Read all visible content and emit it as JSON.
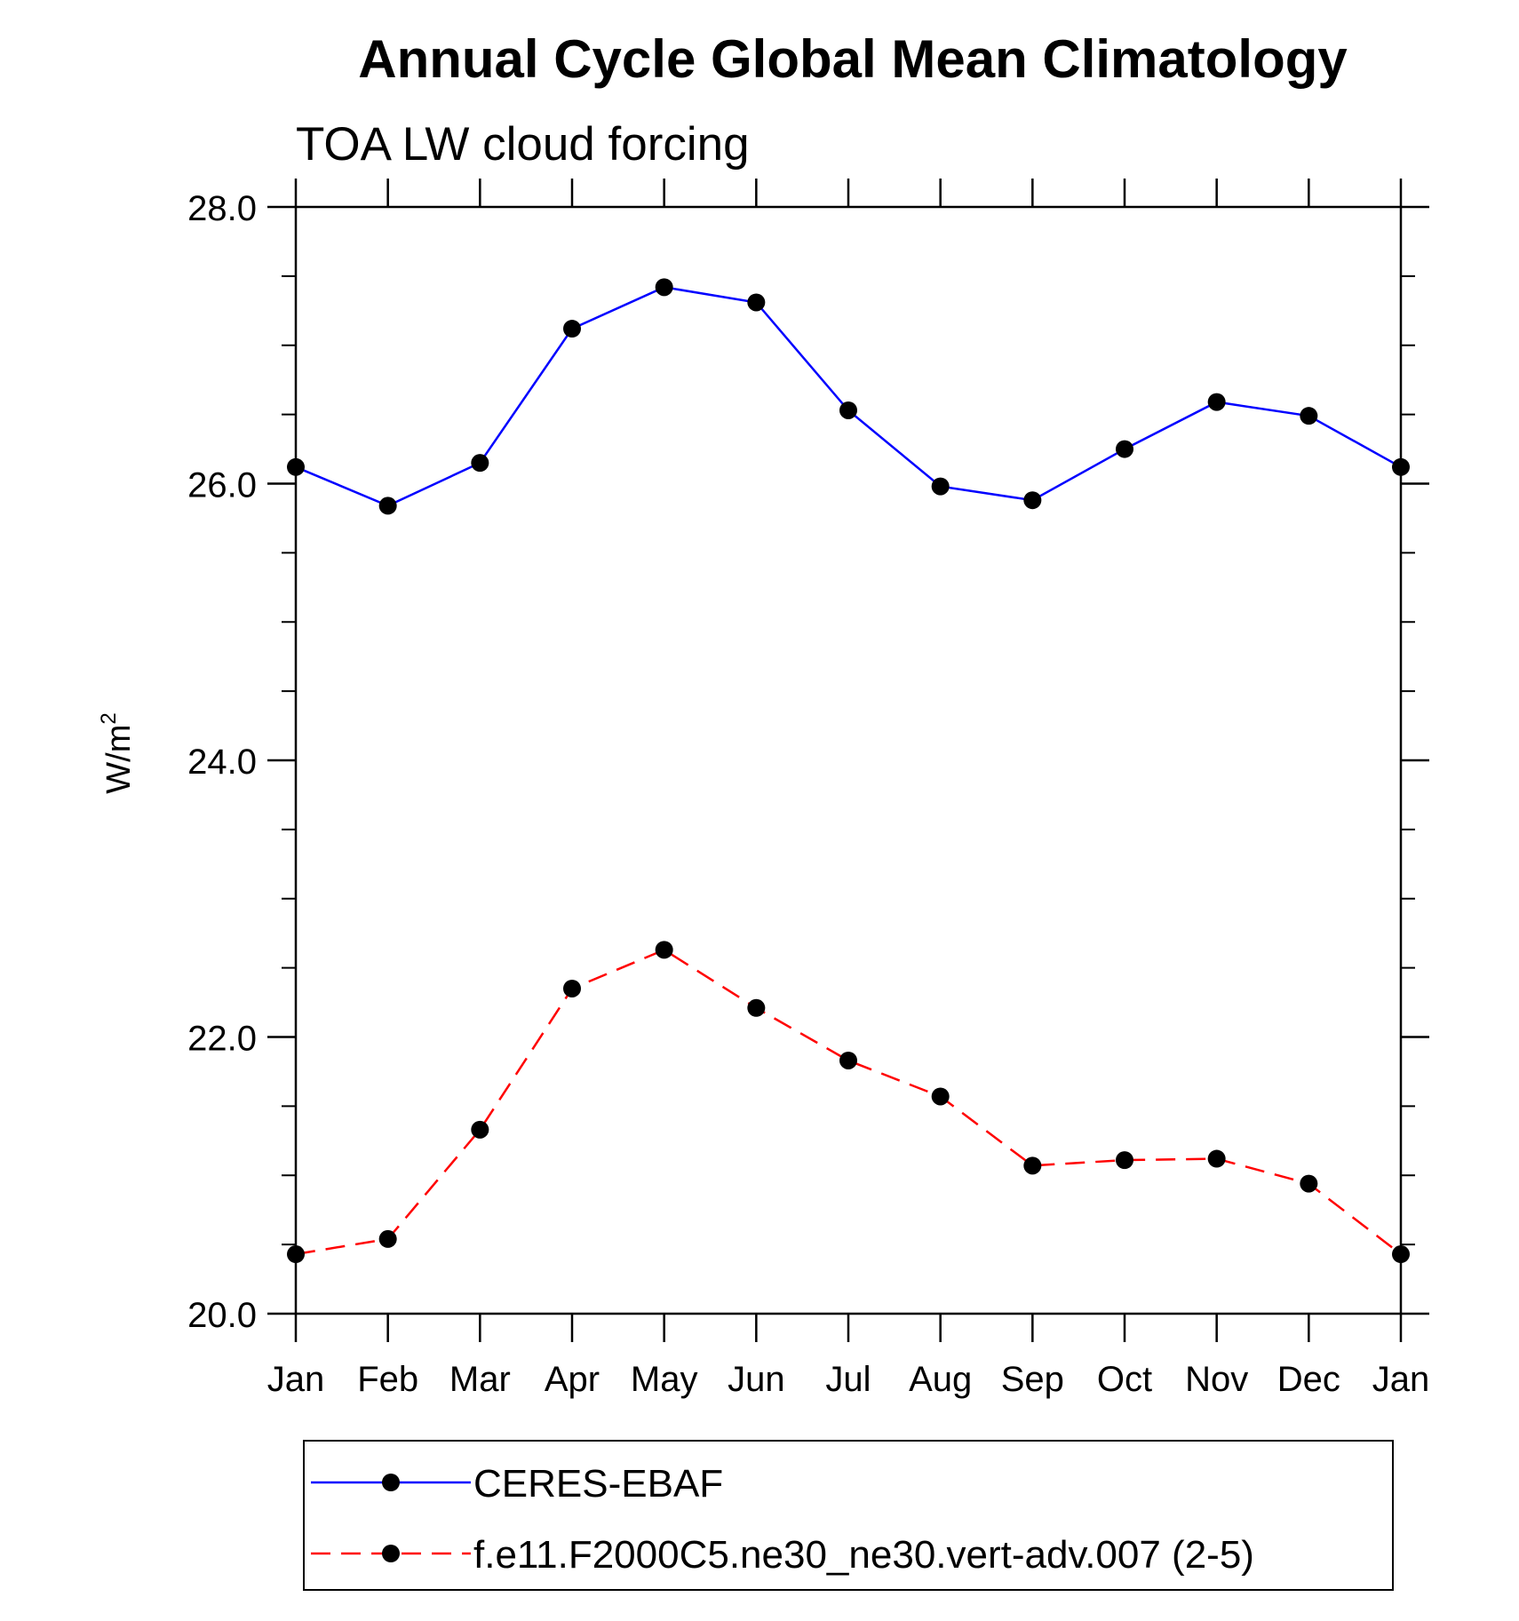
{
  "chart_data": {
    "type": "line",
    "title": "Annual Cycle Global Mean Climatology",
    "subtitle": "TOA LW cloud forcing",
    "ylabel": "W/m",
    "ylabel_superscript": "2",
    "xlabel": "",
    "ylim": [
      20.0,
      28.0
    ],
    "y_major_ticks": [
      20.0,
      22.0,
      24.0,
      26.0,
      28.0
    ],
    "y_tick_labels": [
      "20.0",
      "22.0",
      "24.0",
      "26.0",
      "28.0"
    ],
    "y_minor_step": 0.5,
    "categories": [
      "Jan",
      "Feb",
      "Mar",
      "Apr",
      "May",
      "Jun",
      "Jul",
      "Aug",
      "Sep",
      "Oct",
      "Nov",
      "Dec",
      "Jan"
    ],
    "grid": false,
    "legend_position": "bottom",
    "series": [
      {
        "name": "CERES-EBAF",
        "color": "#0000ff",
        "dash": "solid",
        "marker_color": "#000000",
        "values": [
          26.12,
          25.84,
          26.15,
          27.12,
          27.42,
          27.31,
          26.53,
          25.98,
          25.88,
          26.25,
          26.59,
          26.49,
          26.12
        ]
      },
      {
        "name": "f.e11.F2000C5.ne30_ne30.vert-adv.007 (2-5)",
        "color": "#ff0000",
        "dash": "dashed",
        "marker_color": "#000000",
        "values": [
          20.43,
          20.54,
          21.33,
          22.35,
          22.63,
          22.21,
          21.83,
          21.57,
          21.07,
          21.11,
          21.12,
          20.94,
          20.43
        ]
      }
    ]
  }
}
